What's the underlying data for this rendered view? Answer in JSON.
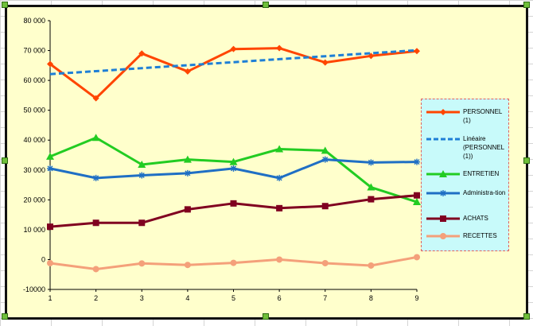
{
  "chart_data": {
    "type": "line",
    "title": "",
    "xlabel": "",
    "ylabel": "",
    "x": [
      1,
      2,
      3,
      4,
      5,
      6,
      7,
      8,
      9
    ],
    "ylim": [
      -10000,
      80000
    ],
    "yticks": [
      -10000,
      0,
      10000,
      20000,
      30000,
      40000,
      50000,
      60000,
      70000,
      80000
    ],
    "ytick_labels": [
      "-10000",
      "0",
      "10 000",
      "20 000",
      "30 000",
      "40 000",
      "50 000",
      "60 000",
      "70 000",
      "80 000"
    ],
    "xtick_labels": [
      "1",
      "2",
      "3",
      "4",
      "5",
      "6",
      "7",
      "8",
      "9"
    ],
    "grid": false,
    "legend_position": "right",
    "series": [
      {
        "name": "PERSONNEL (1)",
        "color": "#ff4500",
        "marker": "diamond",
        "dash": "solid",
        "values": [
          65500,
          54000,
          69000,
          63000,
          70500,
          70800,
          66000,
          68200,
          69800
        ]
      },
      {
        "name": "Linéaire (PERSONNEL (1))",
        "color": "#1e7fd6",
        "marker": "none",
        "dash": "dashed",
        "values": [
          62100,
          63100,
          64100,
          65100,
          66100,
          67100,
          68100,
          69100,
          70100
        ]
      },
      {
        "name": "ENTRETIEN",
        "color": "#22cc22",
        "marker": "triangle",
        "dash": "solid",
        "values": [
          34500,
          40800,
          31800,
          33500,
          32700,
          37000,
          36500,
          24200,
          19300
        ]
      },
      {
        "name": "Administra-tion",
        "color": "#1f6fc4",
        "marker": "star",
        "dash": "solid",
        "values": [
          30500,
          27300,
          28200,
          28900,
          30500,
          27300,
          33500,
          32500,
          32700
        ]
      },
      {
        "name": "ACHATS",
        "color": "#800020",
        "marker": "square",
        "dash": "solid",
        "values": [
          11000,
          12300,
          12300,
          16800,
          18800,
          17200,
          17900,
          20200,
          21500
        ]
      },
      {
        "name": "RECETTES",
        "color": "#f4a07a",
        "marker": "circle",
        "dash": "solid",
        "values": [
          -1200,
          -3200,
          -1300,
          -1800,
          -1100,
          0,
          -1200,
          -2000,
          800
        ]
      }
    ]
  },
  "legend": {
    "items": [
      {
        "label": "PERSONNEL (1)",
        "color": "#ff4500",
        "marker": "diamond",
        "dash": "solid"
      },
      {
        "label": "Linéaire (PERSONNEL (1))",
        "color": "#1e7fd6",
        "marker": "none",
        "dash": "dashed"
      },
      {
        "label": "ENTRETIEN",
        "color": "#22cc22",
        "marker": "triangle",
        "dash": "solid"
      },
      {
        "label": "Administra-tion",
        "color": "#1f6fc4",
        "marker": "star",
        "dash": "solid"
      },
      {
        "label": "ACHATS",
        "color": "#800020",
        "marker": "square",
        "dash": "solid"
      },
      {
        "label": "RECETTES",
        "color": "#f4a07a",
        "marker": "circle",
        "dash": "solid"
      }
    ]
  }
}
